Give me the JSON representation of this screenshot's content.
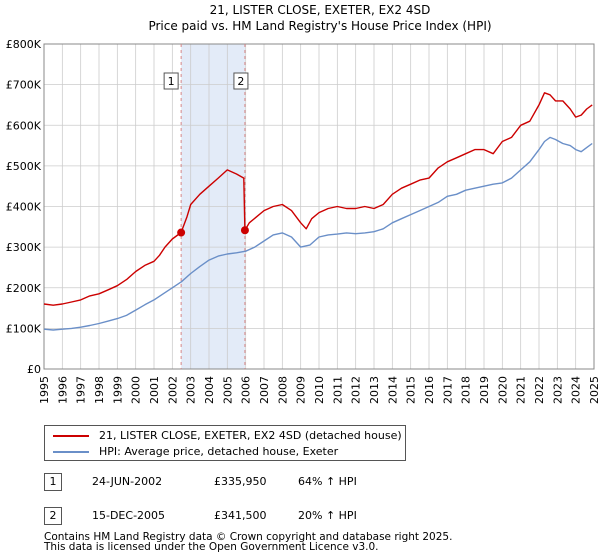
{
  "colors": {
    "price_line": "#cc0000",
    "hpi_line": "#6a8fc8",
    "shade": "#e3ebf8",
    "grid": "#cccccc",
    "sale_marker": "#cc0000",
    "vline": "#d88888"
  },
  "legend": {
    "price_label": "21, LISTER CLOSE, EXETER, EX2 4SD (detached house)",
    "hpi_label": "HPI: Average price, detached house, Exeter"
  },
  "sales": [
    {
      "num": "1",
      "date": "24-JUN-2002",
      "price": "£335,950",
      "hpi": "64% ↑ HPI"
    },
    {
      "num": "2",
      "date": "15-DEC-2005",
      "price": "£341,500",
      "hpi": "20% ↑ HPI"
    }
  ],
  "footer": {
    "line1": "Contains HM Land Registry data © Crown copyright and database right 2025.",
    "line2": "This data is licensed under the Open Government Licence v3.0."
  },
  "chart_data": {
    "type": "line",
    "title": "21, LISTER CLOSE, EXETER, EX2 4SD",
    "subtitle": "Price paid vs. HM Land Registry's House Price Index (HPI)",
    "xlabel": "",
    "ylabel": "",
    "xlim": [
      1995,
      2025
    ],
    "ylim": [
      0,
      800000
    ],
    "yticks": [
      0,
      100000,
      200000,
      300000,
      400000,
      500000,
      600000,
      700000,
      800000
    ],
    "ytick_labels": [
      "£0",
      "£100K",
      "£200K",
      "£300K",
      "£400K",
      "£500K",
      "£600K",
      "£700K",
      "£800K"
    ],
    "xticks": [
      1995,
      1996,
      1997,
      1998,
      1999,
      2000,
      2001,
      2002,
      2003,
      2004,
      2005,
      2006,
      2007,
      2008,
      2009,
      2010,
      2011,
      2012,
      2013,
      2014,
      2015,
      2016,
      2017,
      2018,
      2019,
      2020,
      2021,
      2022,
      2023,
      2024,
      2025
    ],
    "xtick_labels": [
      "1995",
      "1996",
      "1997",
      "1998",
      "1999",
      "2000",
      "2001",
      "2002",
      "2003",
      "2004",
      "2005",
      "2006",
      "2007",
      "2008",
      "2009",
      "2010",
      "2011",
      "2012",
      "2013",
      "2014",
      "2015",
      "2016",
      "2017",
      "2018",
      "2019",
      "2020",
      "2021",
      "2022",
      "2023",
      "2024",
      "2025"
    ],
    "grid": true,
    "shaded_range": [
      2002.48,
      2005.96
    ],
    "sale_points": [
      {
        "label": "1",
        "x": 2002.48,
        "y": 335950
      },
      {
        "label": "2",
        "x": 2005.96,
        "y": 341500
      }
    ],
    "series": [
      {
        "name": "21, LISTER CLOSE, EXETER, EX2 4SD (detached house)",
        "x": [
          1995.0,
          1995.5,
          1996.0,
          1996.5,
          1997.0,
          1997.5,
          1998.0,
          1998.5,
          1999.0,
          1999.5,
          2000.0,
          2000.5,
          2001.0,
          2001.3,
          2001.6,
          2002.0,
          2002.48,
          2002.8,
          2003.0,
          2003.5,
          2004.0,
          2004.5,
          2005.0,
          2005.5,
          2005.9,
          2005.96,
          2006.2,
          2006.6,
          2007.0,
          2007.5,
          2008.0,
          2008.5,
          2009.0,
          2009.3,
          2009.6,
          2010.0,
          2010.5,
          2011.0,
          2011.5,
          2012.0,
          2012.5,
          2013.0,
          2013.5,
          2014.0,
          2014.5,
          2015.0,
          2015.5,
          2016.0,
          2016.5,
          2017.0,
          2017.5,
          2018.0,
          2018.5,
          2019.0,
          2019.5,
          2020.0,
          2020.5,
          2021.0,
          2021.5,
          2022.0,
          2022.3,
          2022.6,
          2022.9,
          2023.3,
          2023.7,
          2024.0,
          2024.3,
          2024.6,
          2024.9
        ],
        "values": [
          160000,
          157000,
          160000,
          165000,
          170000,
          180000,
          185000,
          195000,
          205000,
          220000,
          240000,
          255000,
          265000,
          280000,
          300000,
          320000,
          335950,
          375000,
          405000,
          430000,
          450000,
          470000,
          490000,
          480000,
          470000,
          341500,
          360000,
          375000,
          390000,
          400000,
          405000,
          390000,
          360000,
          345000,
          370000,
          385000,
          395000,
          400000,
          395000,
          395000,
          400000,
          395000,
          405000,
          430000,
          445000,
          455000,
          465000,
          470000,
          495000,
          510000,
          520000,
          530000,
          540000,
          540000,
          530000,
          560000,
          570000,
          600000,
          610000,
          650000,
          680000,
          675000,
          660000,
          660000,
          640000,
          620000,
          625000,
          640000,
          650000
        ]
      },
      {
        "name": "HPI: Average price, detached house, Exeter",
        "x": [
          1995.0,
          1995.5,
          1996.0,
          1996.5,
          1997.0,
          1997.5,
          1998.0,
          1998.5,
          1999.0,
          1999.5,
          2000.0,
          2000.5,
          2001.0,
          2001.5,
          2002.0,
          2002.5,
          2003.0,
          2003.5,
          2004.0,
          2004.5,
          2005.0,
          2005.5,
          2006.0,
          2006.5,
          2007.0,
          2007.5,
          2008.0,
          2008.5,
          2009.0,
          2009.5,
          2010.0,
          2010.5,
          2011.0,
          2011.5,
          2012.0,
          2012.5,
          2013.0,
          2013.5,
          2014.0,
          2014.5,
          2015.0,
          2015.5,
          2016.0,
          2016.5,
          2017.0,
          2017.5,
          2018.0,
          2018.5,
          2019.0,
          2019.5,
          2020.0,
          2020.5,
          2021.0,
          2021.5,
          2022.0,
          2022.3,
          2022.6,
          2022.9,
          2023.3,
          2023.7,
          2024.0,
          2024.3,
          2024.6,
          2024.9
        ],
        "values": [
          98000,
          96000,
          98000,
          100000,
          103000,
          107000,
          112000,
          118000,
          124000,
          132000,
          145000,
          158000,
          170000,
          185000,
          200000,
          215000,
          235000,
          252000,
          268000,
          278000,
          283000,
          286000,
          290000,
          300000,
          315000,
          330000,
          335000,
          325000,
          300000,
          305000,
          325000,
          330000,
          332000,
          335000,
          333000,
          335000,
          338000,
          345000,
          360000,
          370000,
          380000,
          390000,
          400000,
          410000,
          425000,
          430000,
          440000,
          445000,
          450000,
          455000,
          458000,
          470000,
          490000,
          510000,
          540000,
          560000,
          570000,
          565000,
          555000,
          550000,
          540000,
          535000,
          545000,
          555000
        ]
      }
    ]
  }
}
